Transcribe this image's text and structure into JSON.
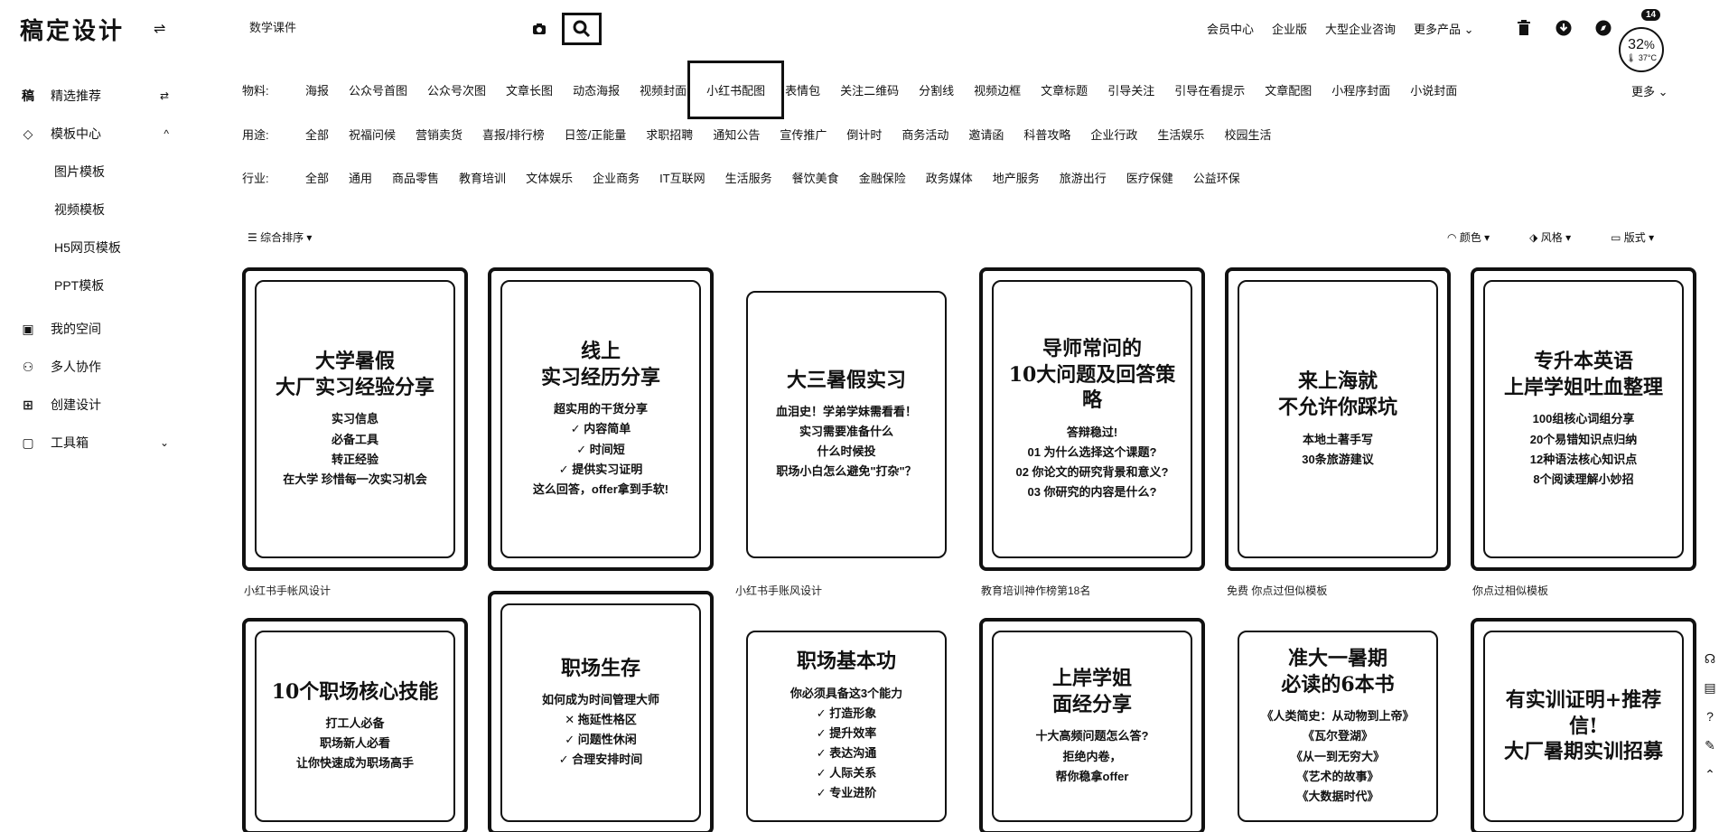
{
  "app": {
    "logo": "稿定设计",
    "collapse_icon": "⇌"
  },
  "sidebar": {
    "items": [
      {
        "icon": "稿",
        "label": "精选推荐",
        "right": "⇄"
      },
      {
        "icon": "◇",
        "label": "模板中心",
        "right": "^"
      }
    ],
    "sub_items": [
      "图片模板",
      "视频模板",
      "H5网页模板",
      "PPT模板"
    ],
    "bottom_items": [
      {
        "icon": "▣",
        "label": "我的空间"
      },
      {
        "icon": "⚇",
        "label": "多人协作"
      },
      {
        "icon": "⊞",
        "label": "创建设计"
      },
      {
        "icon": "▢",
        "label": "工具箱",
        "right": "⌄"
      }
    ]
  },
  "search": {
    "value": "数学课件",
    "placeholder": ""
  },
  "header": {
    "links": [
      "会员中心",
      "企业版",
      "大型企业咨询",
      "更多产品 ⌄"
    ],
    "badge": "14",
    "gauge": {
      "percent": "32",
      "pct_sign": "%",
      "temp": "🌡 37°C"
    }
  },
  "filters": {
    "material": {
      "label": "物料:",
      "options": [
        "海报",
        "公众号首图",
        "公众号次图",
        "文章长图",
        "动态海报",
        "视频封面",
        "小红书配图",
        "表情包",
        "关注二维码",
        "分割线",
        "视频边框",
        "文章标题",
        "引导关注",
        "引导在看提示",
        "文章配图",
        "小程序封面",
        "小说封面"
      ],
      "active_index": 6,
      "more": "更多 ⌄"
    },
    "usage": {
      "label": "用途:",
      "options": [
        "全部",
        "祝福问候",
        "营销卖货",
        "喜报/排行榜",
        "日签/正能量",
        "求职招聘",
        "通知公告",
        "宣传推广",
        "倒计时",
        "商务活动",
        "邀请函",
        "科普攻略",
        "企业行政",
        "生活娱乐",
        "校园生活"
      ]
    },
    "industry": {
      "label": "行业:",
      "options": [
        "全部",
        "通用",
        "商品零售",
        "教育培训",
        "文体娱乐",
        "企业商务",
        "IT互联网",
        "生活服务",
        "餐饮美食",
        "金融保险",
        "政务媒体",
        "地产服务",
        "旅游出行",
        "医疗保健",
        "公益环保"
      ]
    }
  },
  "sort": {
    "label": "综合排序 ▾",
    "right": [
      "颜色 ▾",
      "风格 ▾",
      "版式 ▾"
    ]
  },
  "cards": [
    {
      "title": "大学暑假\n大厂实习经验分享",
      "sub": "实习信息\n必备工具\n转正经验\n在大学 珍惜每一次实习机会",
      "caption": "小红书手帐风设计"
    },
    {
      "title": "线上\n实习经历分享",
      "sub": "超实用的干货分享\n✓ 内容简单\n✓ 时间短\n✓ 提供实习证明\n这么回答，offer拿到手软!",
      "caption": ""
    },
    {
      "title": "大三暑假实习",
      "sub": "血泪史！学弟学妹需看看！\n实习需要准备什么\n什么时候投\n职场小白怎么避免\"打杂\"？",
      "caption": "小红书手账风设计"
    },
    {
      "title": "导师常问的\n10大问题及回答策略",
      "sub": "答辩稳过!\n01 为什么选择这个课题?\n02 你论文的研究背景和意义?\n03 你研究的内容是什么?",
      "caption": "教育培训神作榜第18名"
    },
    {
      "title": "来上海就\n不允许你踩坑",
      "sub": "本地土著手写\n30条旅游建议",
      "caption": "免费  你点过但似模板"
    },
    {
      "title": "专升本英语\n上岸学姐吐血整理",
      "sub": "100组核心词组分享\n20个易错知识点归纳\n12种语法核心知识点\n8个阅读理解小妙招",
      "caption": "你点过相似模板"
    },
    {
      "title": "10个职场核心技能",
      "sub": "打工人必备\n职场新人必看\n让你快速成为职场高手",
      "caption": ""
    },
    {
      "title": "职场生存",
      "sub": "如何成为时间管理大师\n✕ 拖延性格区\n✓ 问题性休闲\n✓ 合理安排时间",
      "caption": ""
    },
    {
      "title": "职场基本功",
      "sub": "你必须具备这3个能力\n✓ 打造形象\n✓ 提升效率\n✓ 表达沟通\n✓ 人际关系\n✓ 专业进阶",
      "caption": ""
    },
    {
      "title": "上岸学姐\n面经分享",
      "sub": "十大高频问题怎么答?\n拒绝内卷，\n帮你稳拿offer",
      "caption": ""
    },
    {
      "title": "准大一暑期\n必读的6本书",
      "sub": "《人类简史：从动物到上帝》\n《瓦尔登湖》\n《从一到无穷大》\n《艺术的故事》\n《大数据时代》",
      "caption": ""
    },
    {
      "title": "有实训证明+推荐信!\n大厂暑期实训招募",
      "sub": "",
      "caption": ""
    }
  ]
}
